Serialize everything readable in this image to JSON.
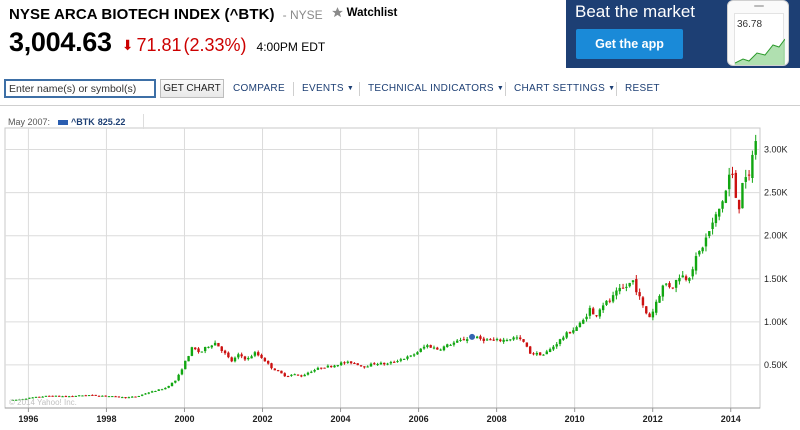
{
  "header": {
    "title": "NYSE ARCA BIOTECH INDEX (^BTK)",
    "exchange": "- NYSE",
    "watchlist_label": "Watchlist",
    "price": "3,004.63",
    "change": "71.81",
    "change_pct": "(2.33%)",
    "time": "4:00PM EDT",
    "change_direction": "down",
    "change_color": "#cc0000"
  },
  "ad": {
    "headline": "Beat the market",
    "button_label": "Get the app",
    "phone_value": "36.78"
  },
  "toolbar": {
    "search_placeholder": "Enter name(s) or symbol(s)",
    "get_chart_label": "GET CHART",
    "compare_label": "COMPARE",
    "events_label": "EVENTS",
    "technical_label": "TECHNICAL INDICATORS",
    "settings_label": "CHART SETTINGS",
    "reset_label": "RESET"
  },
  "legend": {
    "date": "May 2007:",
    "series_name": "^BTK",
    "series_value": "825.22"
  },
  "copyright": "© 2014 Yahoo! Inc.",
  "chart_data": {
    "type": "candlestick",
    "series_name": "^BTK",
    "x_tick_labels": [
      "1996",
      "1998",
      "2000",
      "2002",
      "2004",
      "2006",
      "2008",
      "2010",
      "2012",
      "2014"
    ],
    "y_tick_labels": [
      "0.50K",
      "1.00K",
      "1.50K",
      "2.00K",
      "2.50K",
      "3.00K"
    ],
    "y_ticks": [
      500,
      1000,
      1500,
      2000,
      2500,
      3000
    ],
    "ylim": [
      0,
      3250
    ],
    "xlim": [
      1995.4,
      2014.75
    ],
    "grid": true,
    "up_color": "#11a611",
    "down_color": "#cc1111",
    "highlight": {
      "x": 2007.37,
      "y": 825.22,
      "color": "#3466b2"
    },
    "points": [
      [
        1995.6,
        90
      ],
      [
        1996.0,
        115
      ],
      [
        1996.5,
        140
      ],
      [
        1997.0,
        135
      ],
      [
        1997.5,
        150
      ],
      [
        1998.0,
        140
      ],
      [
        1998.5,
        120
      ],
      [
        1998.8,
        135
      ],
      [
        1999.0,
        170
      ],
      [
        1999.5,
        230
      ],
      [
        1999.8,
        330
      ],
      [
        2000.0,
        520
      ],
      [
        2000.2,
        700
      ],
      [
        2000.4,
        640
      ],
      [
        2000.6,
        720
      ],
      [
        2000.8,
        760
      ],
      [
        2001.0,
        650
      ],
      [
        2001.2,
        540
      ],
      [
        2001.4,
        620
      ],
      [
        2001.6,
        560
      ],
      [
        2001.8,
        640
      ],
      [
        2002.0,
        580
      ],
      [
        2002.2,
        480
      ],
      [
        2002.4,
        420
      ],
      [
        2002.6,
        370
      ],
      [
        2002.8,
        390
      ],
      [
        2003.0,
        370
      ],
      [
        2003.2,
        420
      ],
      [
        2003.5,
        470
      ],
      [
        2003.8,
        490
      ],
      [
        2004.0,
        520
      ],
      [
        2004.3,
        530
      ],
      [
        2004.6,
        480
      ],
      [
        2004.9,
        520
      ],
      [
        2005.2,
        510
      ],
      [
        2005.5,
        560
      ],
      [
        2005.8,
        600
      ],
      [
        2006.0,
        660
      ],
      [
        2006.2,
        730
      ],
      [
        2006.5,
        680
      ],
      [
        2006.8,
        740
      ],
      [
        2007.0,
        770
      ],
      [
        2007.37,
        825
      ],
      [
        2007.6,
        800
      ],
      [
        2007.9,
        780
      ],
      [
        2008.2,
        790
      ],
      [
        2008.5,
        820
      ],
      [
        2008.7,
        760
      ],
      [
        2008.85,
        640
      ],
      [
        2009.0,
        630
      ],
      [
        2009.2,
        620
      ],
      [
        2009.4,
        690
      ],
      [
        2009.6,
        780
      ],
      [
        2009.8,
        860
      ],
      [
        2010.0,
        920
      ],
      [
        2010.2,
        1000
      ],
      [
        2010.4,
        1160
      ],
      [
        2010.5,
        1050
      ],
      [
        2010.7,
        1200
      ],
      [
        2010.9,
        1240
      ],
      [
        2011.1,
        1350
      ],
      [
        2011.3,
        1400
      ],
      [
        2011.5,
        1480
      ],
      [
        2011.6,
        1350
      ],
      [
        2011.8,
        1120
      ],
      [
        2011.95,
        1050
      ],
      [
        2012.1,
        1250
      ],
      [
        2012.3,
        1450
      ],
      [
        2012.5,
        1400
      ],
      [
        2012.7,
        1550
      ],
      [
        2012.9,
        1500
      ],
      [
        2013.1,
        1720
      ],
      [
        2013.3,
        1900
      ],
      [
        2013.5,
        2100
      ],
      [
        2013.7,
        2300
      ],
      [
        2013.9,
        2550
      ],
      [
        2014.0,
        2800
      ],
      [
        2014.1,
        2520
      ],
      [
        2014.2,
        2300
      ],
      [
        2014.3,
        2650
      ],
      [
        2014.45,
        2600
      ],
      [
        2014.55,
        2950
      ],
      [
        2014.65,
        3100
      ],
      [
        2014.72,
        3005
      ]
    ]
  }
}
